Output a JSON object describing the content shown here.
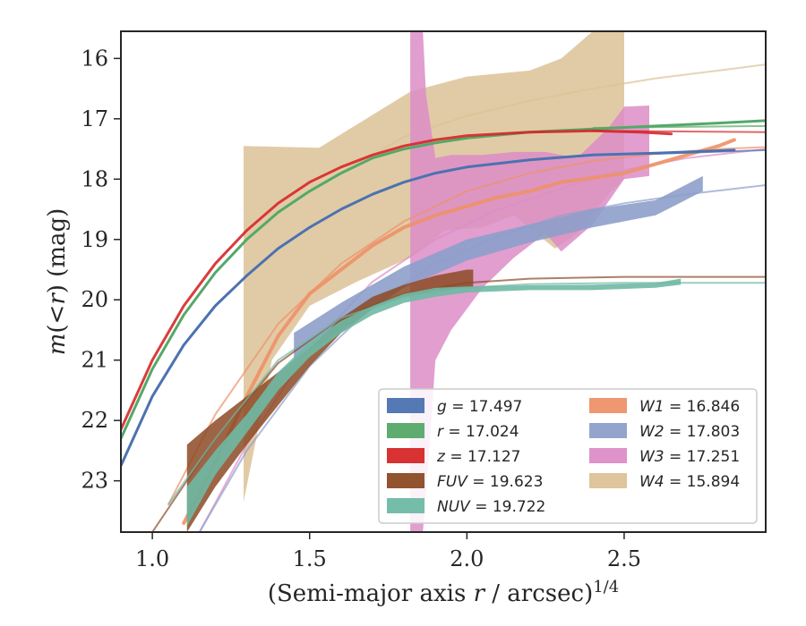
{
  "chart_data": {
    "type": "area",
    "xlabel": "(Semi-major axis r / arcsec)^1/4",
    "xlabel_parts": {
      "prefix": "(Semi-major axis ",
      "var": "r",
      "suffix": " / arcsec)",
      "exponent": "1/4"
    },
    "ylabel": "m(<r) (mag)",
    "ylabel_parts": {
      "var": "m",
      "open": "(",
      "lt": "<",
      "rvar": "r",
      "close": ")",
      "unit": " (mag)"
    },
    "xlim": [
      0.9,
      2.95
    ],
    "ylim": [
      23.85,
      15.55
    ],
    "y_inverted": true,
    "x_ticks": [
      1.0,
      1.5,
      2.0,
      2.5
    ],
    "x_tick_labels": [
      "1.0",
      "1.5",
      "2.0",
      "2.5"
    ],
    "y_ticks": [
      16,
      17,
      18,
      19,
      20,
      21,
      22,
      23
    ],
    "y_tick_labels": [
      "16",
      "17",
      "18",
      "19",
      "20",
      "21",
      "22",
      "23"
    ],
    "legend_position": "lower-right",
    "legend": [
      {
        "band": "g",
        "value": "17.497",
        "color": "#4c72b0"
      },
      {
        "band": "r",
        "value": "17.024",
        "color": "#55a868"
      },
      {
        "band": "z",
        "value": "17.127",
        "color": "#d62728"
      },
      {
        "band": "FUV",
        "value": "19.623",
        "color": "#8c4a24"
      },
      {
        "band": "NUV",
        "value": "19.722",
        "color": "#6fb9a4"
      },
      {
        "band": "W1",
        "value": "16.846",
        "color": "#ee9168"
      },
      {
        "band": "W2",
        "value": "17.803",
        "color": "#8d9fca"
      },
      {
        "band": "W3",
        "value": "17.251",
        "color": "#dc8dc7"
      },
      {
        "band": "W4",
        "value": "15.894",
        "color": "#dcc296"
      }
    ],
    "series": [
      {
        "band": "W4",
        "color": "#dcc296",
        "opacity": 0.85,
        "band_upper": [
          [
            1.29,
            17.45
          ],
          [
            1.53,
            17.48
          ],
          [
            1.82,
            16.55
          ],
          [
            2.0,
            16.3
          ],
          [
            2.2,
            16.2
          ],
          [
            2.3,
            16.0
          ],
          [
            2.4,
            15.55
          ],
          [
            2.5,
            15.55
          ]
        ],
        "band_lower": [
          [
            1.29,
            23.35
          ],
          [
            1.38,
            21.0
          ],
          [
            1.5,
            20.1
          ],
          [
            1.65,
            19.7
          ],
          [
            1.82,
            19.3
          ],
          [
            1.93,
            18.85
          ],
          [
            2.05,
            18.8
          ],
          [
            2.15,
            18.6
          ],
          [
            2.22,
            18.9
          ],
          [
            2.28,
            19.15
          ],
          [
            2.35,
            18.9
          ],
          [
            2.45,
            18.25
          ],
          [
            2.5,
            18.0
          ]
        ],
        "model": [
          [
            1.6,
            17.9
          ],
          [
            1.8,
            17.3
          ],
          [
            2.0,
            16.95
          ],
          [
            2.2,
            16.7
          ],
          [
            2.4,
            16.5
          ],
          [
            2.6,
            16.33
          ],
          [
            2.8,
            16.2
          ],
          [
            2.95,
            16.1
          ]
        ]
      },
      {
        "band": "W3",
        "color": "#dc8dc7",
        "opacity": 0.85,
        "band_upper": [
          [
            1.82,
            15.55
          ],
          [
            1.86,
            15.55
          ],
          [
            1.87,
            16.6
          ],
          [
            1.9,
            17.65
          ],
          [
            1.95,
            17.6
          ],
          [
            2.05,
            17.6
          ],
          [
            2.15,
            17.55
          ],
          [
            2.25,
            17.55
          ],
          [
            2.35,
            17.65
          ],
          [
            2.45,
            17.15
          ],
          [
            2.5,
            16.8
          ],
          [
            2.58,
            16.78
          ]
        ],
        "band_lower": [
          [
            1.82,
            23.85
          ],
          [
            1.86,
            23.85
          ],
          [
            1.88,
            22.5
          ],
          [
            1.9,
            21.0
          ],
          [
            1.95,
            20.5
          ],
          [
            2.05,
            19.8
          ],
          [
            2.15,
            19.3
          ],
          [
            2.25,
            18.9
          ],
          [
            2.3,
            19.2
          ],
          [
            2.4,
            18.75
          ],
          [
            2.5,
            18.0
          ],
          [
            2.58,
            17.95
          ]
        ],
        "model": [
          [
            1.15,
            23.85
          ],
          [
            1.3,
            22.4
          ],
          [
            1.5,
            20.8
          ],
          [
            1.7,
            19.7
          ],
          [
            1.9,
            19.0
          ],
          [
            2.1,
            18.5
          ],
          [
            2.3,
            18.15
          ],
          [
            2.5,
            17.85
          ],
          [
            2.7,
            17.65
          ],
          [
            2.95,
            17.5
          ]
        ]
      },
      {
        "band": "W1",
        "color": "#ee9168",
        "opacity": 0.9,
        "width": 4,
        "obs": [
          [
            1.1,
            23.7
          ],
          [
            1.2,
            22.7
          ],
          [
            1.3,
            21.6
          ],
          [
            1.4,
            20.6
          ],
          [
            1.5,
            19.9
          ],
          [
            1.6,
            19.5
          ],
          [
            1.7,
            19.1
          ],
          [
            1.8,
            18.8
          ],
          [
            1.9,
            18.6
          ],
          [
            2.0,
            18.45
          ],
          [
            2.1,
            18.3
          ],
          [
            2.2,
            18.2
          ],
          [
            2.3,
            18.05
          ],
          [
            2.4,
            17.98
          ],
          [
            2.5,
            17.9
          ],
          [
            2.6,
            17.75
          ],
          [
            2.7,
            17.6
          ],
          [
            2.8,
            17.45
          ],
          [
            2.85,
            17.35
          ]
        ],
        "model": [
          [
            1.05,
            23.4
          ],
          [
            1.2,
            21.9
          ],
          [
            1.4,
            20.4
          ],
          [
            1.6,
            19.4
          ],
          [
            1.8,
            18.7
          ],
          [
            2.0,
            18.2
          ],
          [
            2.2,
            17.9
          ],
          [
            2.4,
            17.7
          ],
          [
            2.6,
            17.58
          ],
          [
            2.8,
            17.5
          ],
          [
            2.95,
            17.47
          ]
        ]
      },
      {
        "band": "W2",
        "color": "#8d9fca",
        "opacity": 0.9,
        "band_upper": [
          [
            1.45,
            20.55
          ],
          [
            1.6,
            20.05
          ],
          [
            1.8,
            19.45
          ],
          [
            2.0,
            19.0
          ],
          [
            2.2,
            18.75
          ],
          [
            2.4,
            18.5
          ],
          [
            2.6,
            18.35
          ],
          [
            2.75,
            17.95
          ]
        ],
        "band_lower": [
          [
            1.45,
            21.0
          ],
          [
            1.6,
            20.5
          ],
          [
            1.8,
            19.8
          ],
          [
            2.0,
            19.35
          ],
          [
            2.2,
            19.05
          ],
          [
            2.4,
            18.8
          ],
          [
            2.6,
            18.6
          ],
          [
            2.75,
            18.2
          ]
        ],
        "model": [
          [
            1.15,
            23.85
          ],
          [
            1.3,
            22.5
          ],
          [
            1.5,
            21.1
          ],
          [
            1.7,
            20.1
          ],
          [
            1.9,
            19.4
          ],
          [
            2.1,
            18.95
          ],
          [
            2.3,
            18.6
          ],
          [
            2.5,
            18.4
          ],
          [
            2.7,
            18.25
          ],
          [
            2.95,
            18.1
          ]
        ]
      },
      {
        "band": "FUV",
        "color": "#8c4a24",
        "opacity": 0.85,
        "band_upper": [
          [
            1.11,
            22.4
          ],
          [
            1.2,
            22.0
          ],
          [
            1.3,
            21.6
          ],
          [
            1.4,
            21.2
          ],
          [
            1.5,
            20.8
          ],
          [
            1.6,
            20.3
          ],
          [
            1.7,
            19.95
          ],
          [
            1.8,
            19.75
          ],
          [
            1.9,
            19.6
          ],
          [
            2.0,
            19.5
          ],
          [
            2.02,
            19.5
          ]
        ],
        "band_lower": [
          [
            1.11,
            23.85
          ],
          [
            1.2,
            23.1
          ],
          [
            1.3,
            22.4
          ],
          [
            1.4,
            21.75
          ],
          [
            1.5,
            21.1
          ],
          [
            1.6,
            20.55
          ],
          [
            1.7,
            20.15
          ],
          [
            1.8,
            19.95
          ],
          [
            1.9,
            19.85
          ],
          [
            2.0,
            19.8
          ],
          [
            2.02,
            19.8
          ]
        ],
        "model": [
          [
            1.0,
            23.85
          ],
          [
            1.2,
            22.3
          ],
          [
            1.4,
            21.05
          ],
          [
            1.6,
            20.3
          ],
          [
            1.8,
            19.9
          ],
          [
            2.0,
            19.72
          ],
          [
            2.2,
            19.65
          ],
          [
            2.5,
            19.62
          ],
          [
            2.95,
            19.62
          ]
        ]
      },
      {
        "band": "NUV",
        "color": "#6fb9a4",
        "opacity": 0.9,
        "band_upper": [
          [
            1.11,
            23.1
          ],
          [
            1.2,
            22.5
          ],
          [
            1.3,
            21.9
          ],
          [
            1.4,
            21.2
          ],
          [
            1.5,
            20.7
          ],
          [
            1.6,
            20.35
          ],
          [
            1.7,
            20.1
          ],
          [
            1.8,
            19.9
          ],
          [
            1.9,
            19.8
          ],
          [
            2.0,
            19.78
          ],
          [
            2.2,
            19.76
          ],
          [
            2.4,
            19.75
          ],
          [
            2.6,
            19.72
          ],
          [
            2.68,
            19.65
          ]
        ],
        "band_lower": [
          [
            1.11,
            23.75
          ],
          [
            1.2,
            22.9
          ],
          [
            1.3,
            22.2
          ],
          [
            1.4,
            21.5
          ],
          [
            1.5,
            20.95
          ],
          [
            1.6,
            20.55
          ],
          [
            1.7,
            20.25
          ],
          [
            1.8,
            20.05
          ],
          [
            1.9,
            19.95
          ],
          [
            2.0,
            19.88
          ],
          [
            2.2,
            19.84
          ],
          [
            2.4,
            19.84
          ],
          [
            2.6,
            19.8
          ],
          [
            2.68,
            19.75
          ]
        ],
        "model": [
          [
            1.05,
            23.4
          ],
          [
            1.2,
            22.3
          ],
          [
            1.4,
            21.0
          ],
          [
            1.6,
            20.3
          ],
          [
            1.8,
            19.95
          ],
          [
            2.0,
            19.8
          ],
          [
            2.2,
            19.74
          ],
          [
            2.5,
            19.72
          ],
          [
            2.95,
            19.72
          ]
        ]
      },
      {
        "band": "g",
        "color": "#4c72b0",
        "opacity": 1.0,
        "width": 3,
        "obs": [
          [
            0.9,
            22.75
          ],
          [
            1.0,
            21.6
          ],
          [
            1.1,
            20.75
          ],
          [
            1.2,
            20.1
          ],
          [
            1.3,
            19.6
          ],
          [
            1.4,
            19.15
          ],
          [
            1.5,
            18.8
          ],
          [
            1.6,
            18.5
          ],
          [
            1.7,
            18.25
          ],
          [
            1.8,
            18.05
          ],
          [
            1.9,
            17.9
          ],
          [
            2.0,
            17.8
          ],
          [
            2.2,
            17.68
          ],
          [
            2.4,
            17.6
          ],
          [
            2.6,
            17.57
          ],
          [
            2.85,
            17.52
          ]
        ],
        "model": [
          [
            2.6,
            17.58
          ],
          [
            2.95,
            17.52
          ]
        ]
      },
      {
        "band": "r",
        "color": "#55a868",
        "opacity": 1.0,
        "width": 3,
        "obs": [
          [
            0.9,
            22.3
          ],
          [
            1.0,
            21.15
          ],
          [
            1.1,
            20.25
          ],
          [
            1.2,
            19.55
          ],
          [
            1.3,
            19.0
          ],
          [
            1.4,
            18.55
          ],
          [
            1.5,
            18.2
          ],
          [
            1.6,
            17.9
          ],
          [
            1.7,
            17.65
          ],
          [
            1.8,
            17.5
          ],
          [
            1.9,
            17.4
          ],
          [
            2.0,
            17.32
          ],
          [
            2.2,
            17.22
          ],
          [
            2.4,
            17.17
          ],
          [
            2.6,
            17.12
          ],
          [
            2.8,
            17.07
          ],
          [
            2.95,
            17.03
          ]
        ],
        "model": [
          [
            2.4,
            17.15
          ],
          [
            2.95,
            17.12
          ]
        ]
      },
      {
        "band": "z",
        "color": "#d62728",
        "opacity": 0.9,
        "width": 3,
        "obs": [
          [
            0.9,
            22.15
          ],
          [
            1.0,
            21.0
          ],
          [
            1.1,
            20.1
          ],
          [
            1.2,
            19.4
          ],
          [
            1.3,
            18.85
          ],
          [
            1.4,
            18.4
          ],
          [
            1.5,
            18.05
          ],
          [
            1.6,
            17.8
          ],
          [
            1.7,
            17.6
          ],
          [
            1.8,
            17.45
          ],
          [
            1.9,
            17.35
          ],
          [
            2.0,
            17.28
          ],
          [
            2.2,
            17.22
          ],
          [
            2.4,
            17.2
          ],
          [
            2.55,
            17.22
          ],
          [
            2.65,
            17.25
          ]
        ],
        "model": [
          [
            2.4,
            17.2
          ],
          [
            2.95,
            17.22
          ]
        ]
      }
    ]
  }
}
